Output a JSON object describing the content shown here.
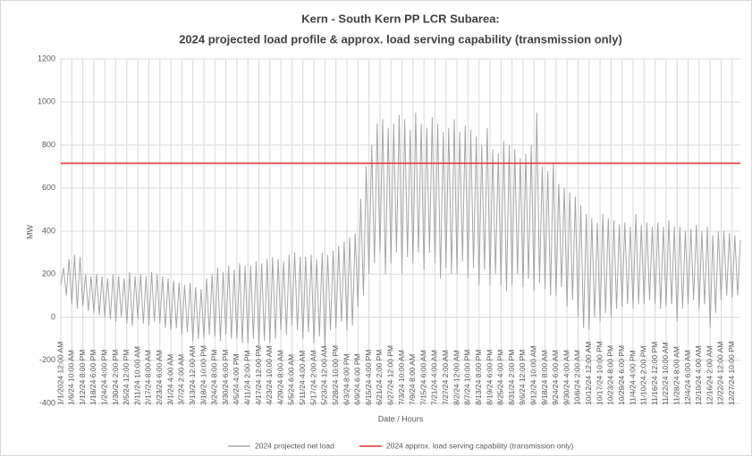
{
  "chart_data": {
    "type": "line",
    "title": "Kern - South Kern PP LCR Subarea:",
    "subtitle": "2024 projected load profile & approx. load serving capability (transmission only)",
    "x_label": "Date / Hours",
    "y_label": "MW",
    "categories": [
      "1/1/2024 12:00 AM",
      null,
      null,
      null,
      "1/6/24 10:00 AM",
      null,
      null,
      null,
      "1/12/24 8:00 PM",
      null,
      null,
      null,
      "1/18/24 6:00 PM",
      null,
      null,
      null,
      "1/24/24 4:00 PM",
      null,
      null,
      null,
      "1/30/24 2:00 PM",
      null,
      null,
      null,
      "2/5/24 12:00 PM",
      null,
      null,
      null,
      "2/11/24 10:00 AM",
      null,
      null,
      null,
      "2/17/24 8:00 AM",
      null,
      null,
      null,
      "2/23/24 6:00 AM",
      null,
      null,
      null,
      "3/1/24 4:00 AM",
      null,
      null,
      null,
      "3/7/24 2:00 AM",
      null,
      null,
      null,
      "3/13/24 12:00 AM",
      null,
      null,
      null,
      "3/18/24 10:00 PM",
      null,
      null,
      null,
      "3/24/24 8:00 PM",
      null,
      null,
      null,
      "3/30/24 6:00 PM",
      null,
      null,
      null,
      "4/5/24 4:00 PM",
      null,
      null,
      null,
      "4/11/24 2:00 PM",
      null,
      null,
      null,
      "4/17/24 12:00 PM",
      null,
      null,
      null,
      "4/23/24 10:00 AM",
      null,
      null,
      null,
      "4/29/24 8:00 AM",
      null,
      null,
      null,
      "5/5/24 6:00 AM",
      null,
      null,
      null,
      "5/11/24 4:00 AM",
      null,
      null,
      null,
      "5/17/24 2:00 AM",
      null,
      null,
      null,
      "5/23/24 12:00 AM",
      null,
      null,
      null,
      "5/28/24 10:00 PM",
      null,
      null,
      null,
      "6/3/24 8:00 PM",
      null,
      null,
      null,
      "6/9/24 6:00 PM",
      null,
      null,
      null,
      "6/15/24 4:00 PM",
      null,
      null,
      null,
      "6/21/24 2:00 PM",
      null,
      null,
      null,
      "6/27/24 12:00 PM",
      null,
      null,
      null,
      "7/3/24 10:00 AM",
      null,
      null,
      null,
      "7/9/24 8:00 AM",
      null,
      null,
      null,
      "7/15/24 6:00 AM",
      null,
      null,
      null,
      "7/21/24 4:00 AM",
      null,
      null,
      null,
      "7/27/24 2:00 AM",
      null,
      null,
      null,
      "8/2/24 12:00 AM",
      null,
      null,
      null,
      "8/7/24 10:00 PM",
      null,
      null,
      null,
      "8/13/24 8:00 PM",
      null,
      null,
      null,
      "8/19/24 6:00 PM",
      null,
      null,
      null,
      "8/25/24 4:00 PM",
      null,
      null,
      null,
      "8/31/24 2:00 PM",
      null,
      null,
      null,
      "9/6/24 12:00 PM",
      null,
      null,
      null,
      "9/12/24 10:00 AM",
      null,
      null,
      null,
      "9/18/24 8:00 AM",
      null,
      null,
      null,
      "9/24/24 6:00 AM",
      null,
      null,
      null,
      "9/30/24 4:00 AM",
      null,
      null,
      null,
      "10/6/24 2:00 AM",
      null,
      null,
      null,
      "10/12/24 12:00 AM",
      null,
      null,
      null,
      "10/17/24 10:00 PM",
      null,
      null,
      null,
      "10/23/24 8:00 PM",
      null,
      null,
      null,
      "10/29/24 6:00 PM",
      null,
      null,
      null,
      "11/4/24 4:00 PM",
      null,
      null,
      null,
      "11/10/24 2:00 PM",
      null,
      null,
      null,
      "11/16/24 12:00 PM",
      null,
      null,
      null,
      "11/22/24 10:00 AM",
      null,
      null,
      null,
      "11/28/24 8:00 AM",
      null,
      null,
      null,
      "12/4/24 6:00 AM",
      null,
      null,
      null,
      "12/10/24 4:00 AM",
      null,
      null,
      null,
      "12/16/24 2:00 AM",
      null,
      null,
      null,
      "12/22/24 12:00 AM",
      null,
      null,
      null,
      "12/27/24 10:00 PM",
      null,
      null,
      null
    ],
    "series": [
      {
        "name": "2024 projected net load",
        "color": "#a6a6a6",
        "values": [
          150,
          230,
          100,
          270,
          60,
          290,
          40,
          280,
          50,
          200,
          30,
          190,
          20,
          200,
          10,
          190,
          0,
          180,
          -10,
          200,
          -20,
          190,
          0,
          180,
          -30,
          210,
          -40,
          190,
          -10,
          200,
          -30,
          190,
          -40,
          210,
          -20,
          200,
          -30,
          190,
          -50,
          180,
          -60,
          170,
          -50,
          160,
          -80,
          150,
          -70,
          160,
          -110,
          140,
          -100,
          130,
          -100,
          180,
          -80,
          200,
          -90,
          230,
          -110,
          210,
          -80,
          240,
          -100,
          220,
          -100,
          250,
          -120,
          240,
          -120,
          240,
          -100,
          260,
          -130,
          250,
          -110,
          270,
          -120,
          280,
          -100,
          270,
          -60,
          260,
          -80,
          290,
          -40,
          300,
          -60,
          280,
          -100,
          280,
          -70,
          290,
          -120,
          270,
          -90,
          300,
          -140,
          290,
          -60,
          310,
          -50,
          330,
          -20,
          350,
          -60,
          370,
          -40,
          390,
          50,
          550,
          100,
          700,
          200,
          800,
          250,
          900,
          300,
          920,
          200,
          880,
          250,
          900,
          300,
          940,
          200,
          920,
          280,
          870,
          250,
          950,
          300,
          900,
          220,
          880,
          300,
          930,
          250,
          900,
          180,
          860,
          230,
          880,
          200,
          920,
          200,
          860,
          260,
          890,
          180,
          870,
          230,
          840,
          150,
          800,
          220,
          880,
          150,
          780,
          200,
          760,
          150,
          820,
          120,
          800,
          150,
          780,
          200,
          740,
          140,
          760,
          180,
          800,
          120,
          950,
          160,
          700,
          130,
          680,
          100,
          720,
          100,
          620,
          140,
          600,
          50,
          580,
          80,
          560,
          0,
          520,
          -50,
          480,
          -60,
          460,
          0,
          440,
          -20,
          480,
          20,
          460,
          0,
          450,
          40,
          430,
          50,
          440,
          60,
          420,
          40,
          480,
          60,
          430,
          60,
          440,
          80,
          420,
          60,
          440,
          40,
          420,
          50,
          450,
          60,
          420,
          -20,
          420,
          40,
          400,
          60,
          410,
          80,
          430,
          40,
          400,
          60,
          420,
          -50,
          380,
          20,
          400,
          80,
          400,
          100,
          390,
          90,
          380,
          100,
          360
        ]
      }
    ],
    "reference_line": {
      "name": "2024 approx. load serving  capability (transmission only)",
      "color": "#e03030",
      "value": 715
    },
    "ylim": [
      -400,
      1200
    ],
    "yticks": [
      -400,
      -200,
      0,
      200,
      400,
      600,
      800,
      1000,
      1200
    ],
    "grid": true,
    "legend": "bottom"
  }
}
